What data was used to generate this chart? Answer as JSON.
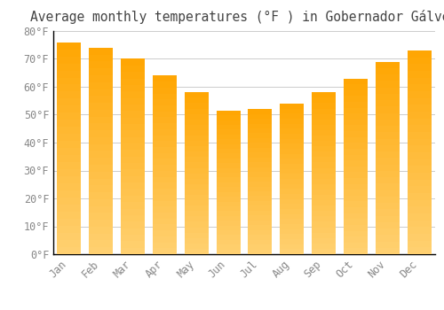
{
  "title": "Average monthly temperatures (°F ) in Gobernador Gálvez",
  "months": [
    "Jan",
    "Feb",
    "Mar",
    "Apr",
    "May",
    "Jun",
    "Jul",
    "Aug",
    "Sep",
    "Oct",
    "Nov",
    "Dec"
  ],
  "values": [
    76,
    74,
    70,
    64,
    58,
    51.5,
    52,
    54,
    58,
    63,
    69,
    73
  ],
  "bar_color_top": "#FFA500",
  "bar_color_bottom": "#FFD070",
  "background_color": "#FFFFFF",
  "plot_bg_color": "#FFFFFF",
  "grid_color": "#CCCCCC",
  "text_color": "#888888",
  "spine_color": "#000000",
  "ylim": [
    0,
    80
  ],
  "yticks": [
    0,
    10,
    20,
    30,
    40,
    50,
    60,
    70,
    80
  ],
  "title_fontsize": 10.5,
  "tick_fontsize": 8.5,
  "bar_width": 0.75
}
